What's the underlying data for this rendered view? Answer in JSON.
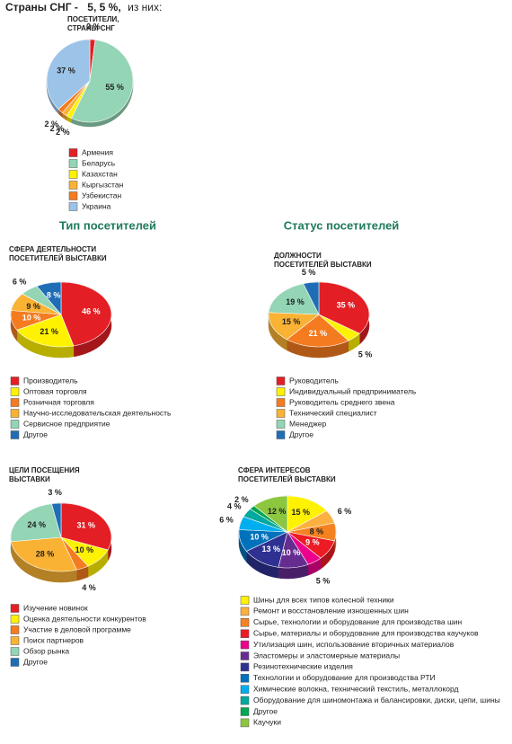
{
  "header": {
    "prefix": "Страны СНГ -",
    "share": "5, 5 %,",
    "suffix": "из них:"
  },
  "sections": [
    "Тип посетителей",
    "Статус посетителей"
  ],
  "chart_data": [
    {
      "type": "pie",
      "title": [
        "ПОСЕТИТЕЛИ,",
        "СТРАНЫ СНГ"
      ],
      "categories": [
        "Армения",
        "Беларусь",
        "Казахстан",
        "Кыргызстан",
        "Узбекистан",
        "Украина"
      ],
      "values": [
        2,
        55,
        2,
        2,
        2,
        37
      ],
      "value_labels": [
        "2 %",
        "55 %",
        "2 %",
        "2 %",
        "2 %",
        "37 %"
      ],
      "colors": [
        "#e31e24",
        "#93d5b5",
        "#fff200",
        "#f9b233",
        "#f47b20",
        "#9cc3e8"
      ]
    },
    {
      "type": "pie",
      "title": [
        "СФЕРА ДЕЯТЕЛЬНОСТИ",
        "ПОСЕТИТЕЛЕЙ ВЫСТАВКИ"
      ],
      "categories": [
        "Производитель",
        "Оптовая торговля",
        "Розничная торговля",
        "Научно-исследовательская деятельность",
        "Сервисное предприятие",
        "Другое"
      ],
      "values": [
        46,
        21,
        10,
        9,
        6,
        8
      ],
      "value_labels": [
        "46 %",
        "21 %",
        "10 %",
        "9 %",
        "6 %",
        "8 %"
      ],
      "colors": [
        "#e31e24",
        "#fff200",
        "#f47b20",
        "#f9b233",
        "#93d5b5",
        "#1f6db5"
      ]
    },
    {
      "type": "pie",
      "title": [
        "ДОЛЖНОСТИ",
        "ПОСЕТИТЕЛЕЙ ВЫСТАВКИ"
      ],
      "categories": [
        "Руководитель",
        "Индивидуальный предприниматель",
        "Руководитель среднего звена",
        "Технический специалист",
        "Менеджер",
        "Другое"
      ],
      "values": [
        35,
        5,
        21,
        15,
        19,
        5
      ],
      "value_labels": [
        "35 %",
        "5 %",
        "21 %",
        "15 %",
        "19 %",
        "5 %"
      ],
      "colors": [
        "#e31e24",
        "#fff200",
        "#f47b20",
        "#f9b233",
        "#93d5b5",
        "#1f6db5"
      ]
    },
    {
      "type": "pie",
      "title": [
        "ЦЕЛИ ПОСЕЩЕНИЯ",
        "ВЫСТАВКИ"
      ],
      "categories": [
        "Изучение новинок",
        "Оценка деятельности конкурентов",
        "Участие в деловой программе",
        "Поиск партнеров",
        "Обзор рынка",
        "Другое"
      ],
      "values": [
        31,
        10,
        4,
        28,
        24,
        3
      ],
      "value_labels": [
        "31 %",
        "10 %",
        "4 %",
        "28 %",
        "24 %",
        "3 %"
      ],
      "colors": [
        "#e31e24",
        "#fff200",
        "#f47b20",
        "#f9b233",
        "#93d5b5",
        "#1f6db5"
      ]
    },
    {
      "type": "pie",
      "title": [
        "СФЕРА ИНТЕРЕСОВ",
        "ПОСЕТИТЕЛЕЙ ВЫСТАВКИ"
      ],
      "categories": [
        "Шины для всех типов колесной техники",
        "Ремонт и восстановление изношенных шин",
        "Сырье, технологии и оборудование для производства шин",
        "Сырье, материалы и оборудование для производства каучуков",
        "Утилизация шин, использование вторичных материалов",
        "Эластомеры и эластомерные материалы",
        "Резинотехнические изделия",
        "Технологии и оборудование для производства РТИ",
        "Химические волокна, технический текстиль, металлокорд",
        "Оборудование для шиномонтажа и балансировки, диски, цепи, шины",
        "Другое",
        "Каучуки"
      ],
      "values": [
        15,
        6,
        8,
        9,
        5,
        10,
        13,
        10,
        6,
        4,
        2,
        12
      ],
      "value_labels": [
        "15 %",
        "6 %",
        "8 %",
        "9 %",
        "5 %",
        "10 %",
        "13 %",
        "10 %",
        "6 %",
        "4 %",
        "2 %",
        "12 %"
      ],
      "colors": [
        "#fff200",
        "#fbb040",
        "#f58220",
        "#ed1c24",
        "#ec008c",
        "#662d91",
        "#2e3192",
        "#0072bc",
        "#00aeef",
        "#00a99d",
        "#00a651",
        "#8dc63f"
      ]
    }
  ]
}
